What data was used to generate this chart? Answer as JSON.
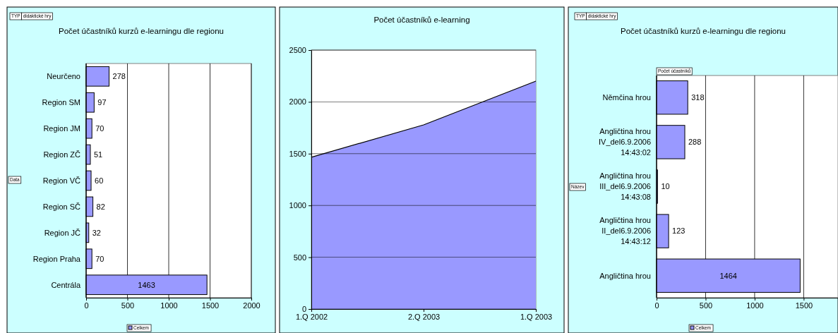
{
  "chart_data": [
    {
      "type": "bar",
      "orientation": "horizontal",
      "title": "Počet účastníků kurzů e-learningu dle regionu",
      "categories": [
        "Neurčeno",
        "Region SM",
        "Region JM",
        "Region  ZČ",
        "Region VČ",
        "Region SČ",
        "Region JČ",
        "Region Praha",
        "Centrála"
      ],
      "series": [
        {
          "name": "Celkem",
          "color": "#9999ff",
          "values": [
            278,
            97,
            70,
            51,
            60,
            82,
            32,
            70,
            1463
          ]
        }
      ],
      "xlim": [
        0,
        2000
      ],
      "xticks": [
        0,
        500,
        1000,
        1500,
        2000
      ],
      "grid": "x",
      "legend": "bottom",
      "data_labels": true,
      "annotations": [
        "TYP",
        "didaktické hry",
        "Data"
      ]
    },
    {
      "type": "area",
      "title": "Počet účastníků e-learning",
      "categories": [
        "1.Q 2002",
        "2.Q 2003",
        "1.Q 2003"
      ],
      "series": [
        {
          "color": "#9999ff",
          "values": [
            1465,
            1778,
            2200
          ]
        }
      ],
      "ylim": [
        0,
        2500
      ],
      "yticks": [
        0,
        500,
        1000,
        1500,
        2000,
        2500
      ],
      "grid": "y"
    },
    {
      "type": "bar",
      "orientation": "horizontal",
      "title": "Počet účastníků kurzů e-learningu dle regionu",
      "categories": [
        "Němčina hrou",
        "Angličtina hrou IV_del6.9.2006 14:43:02",
        "Angličtina hrou III_del6.9.2006 14:43:08",
        "Angličtina hrou II_del6.9.2006 14:43:12",
        "Angličtina hrou"
      ],
      "series": [
        {
          "name": "Celkem",
          "color": "#9999ff",
          "values": [
            318,
            288,
            10,
            123,
            1464
          ]
        }
      ],
      "xlim": [
        0,
        1850
      ],
      "xticks": [
        0,
        500,
        1000,
        1500
      ],
      "grid": "x",
      "legend": "bottom",
      "data_labels": true,
      "annotations": [
        "TYP",
        "didaktické hry",
        "Počet účastníků",
        "Název"
      ]
    }
  ]
}
